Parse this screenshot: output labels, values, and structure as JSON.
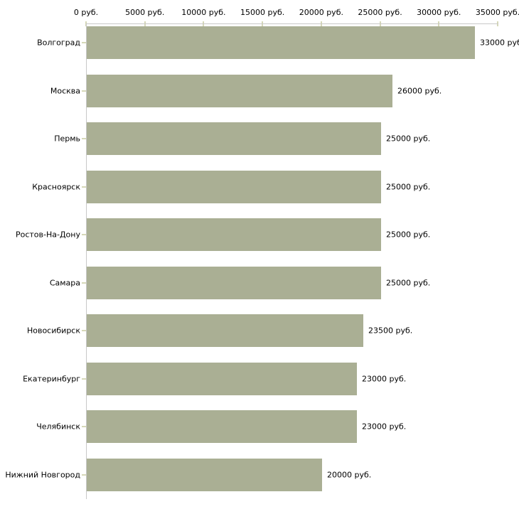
{
  "chart_data": {
    "type": "bar",
    "orientation": "horizontal",
    "title": "",
    "xlabel": "",
    "ylabel": "",
    "xlim": [
      0,
      35000
    ],
    "grid": false,
    "legend_position": "none",
    "x_tick_values": [
      0,
      5000,
      10000,
      15000,
      20000,
      25000,
      30000,
      35000
    ],
    "x_tick_labels": [
      "0 руб.",
      "5000 руб.",
      "10000 руб.",
      "15000 руб.",
      "20000 руб.",
      "25000 руб.",
      "30000 руб.",
      "35000 руб."
    ],
    "categories": [
      "Волгоград",
      "Москва",
      "Пермь",
      "Красноярск",
      "Ростов-На-Дону",
      "Самара",
      "Новосибирск",
      "Екатеринбург",
      "Челябинск",
      "Нижний Новгород"
    ],
    "values": [
      33000,
      26000,
      25000,
      25000,
      25000,
      25000,
      23500,
      23000,
      23000,
      20000
    ],
    "value_labels": [
      "33000 руб",
      "26000 руб.",
      "25000 руб.",
      "25000 руб.",
      "25000 руб.",
      "25000 руб.",
      "23500 руб.",
      "23000 руб.",
      "23000 руб.",
      "20000 руб."
    ],
    "colors": {
      "bar": "#aaaf94",
      "axis_line": "#c8c8c8",
      "tick_mark": "#d6d8b8",
      "text": "#000000",
      "background": "#ffffff"
    }
  }
}
